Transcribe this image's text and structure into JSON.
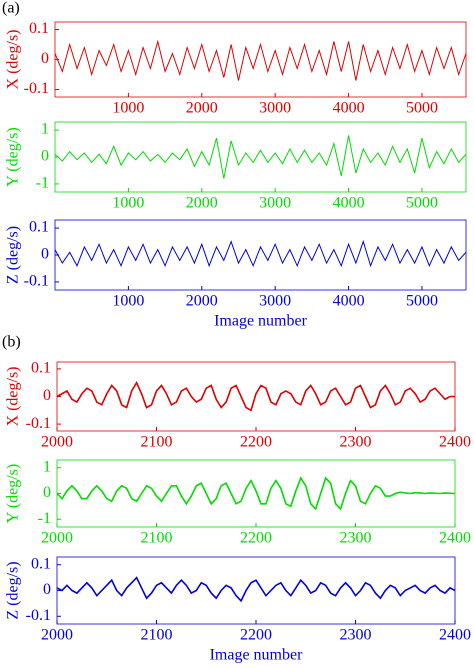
{
  "figure_labels": [
    "(a)",
    "(b)"
  ],
  "chart_data": [
    {
      "type": "line",
      "ylabel": "X (deg/s)",
      "xlim": [
        0,
        5600
      ],
      "ylim": [
        -0.125,
        0.125
      ],
      "xticks": [
        1000,
        2000,
        3000,
        4000,
        5000
      ],
      "yticks": [
        -0.1,
        0,
        0.1
      ],
      "x": [
        0,
        100,
        200,
        300,
        400,
        500,
        600,
        700,
        800,
        900,
        1000,
        1100,
        1200,
        1300,
        1400,
        1500,
        1600,
        1700,
        1800,
        1900,
        2000,
        2100,
        2200,
        2300,
        2400,
        2500,
        2600,
        2700,
        2800,
        2900,
        3000,
        3100,
        3200,
        3300,
        3400,
        3500,
        3600,
        3700,
        3800,
        3900,
        4000,
        4100,
        4200,
        4300,
        4400,
        4500,
        4600,
        4700,
        4800,
        4900,
        5000,
        5100,
        5200,
        5300,
        5400,
        5500,
        5600
      ],
      "series": [
        {
          "color": "#e00000",
          "values": [
            0.02,
            -0.04,
            0.05,
            -0.03,
            0.04,
            -0.05,
            0.03,
            -0.02,
            0.05,
            -0.04,
            0.03,
            -0.05,
            0.04,
            -0.03,
            0.06,
            -0.04,
            0.02,
            -0.05,
            0.04,
            -0.03,
            0.05,
            -0.04,
            0.03,
            -0.06,
            0.05,
            -0.07,
            0.04,
            -0.03,
            0.05,
            -0.04,
            0.03,
            -0.05,
            0.04,
            -0.03,
            0.05,
            -0.04,
            0.03,
            -0.05,
            0.06,
            -0.04,
            0.06,
            -0.07,
            0.05,
            -0.04,
            0.03,
            -0.05,
            0.04,
            -0.03,
            0.05,
            -0.04,
            0.03,
            -0.05,
            0.04,
            -0.03,
            0.04,
            -0.05,
            0.02
          ]
        }
      ]
    },
    {
      "type": "line",
      "ylabel": "Y (deg/s)",
      "xlim": [
        0,
        5600
      ],
      "ylim": [
        -1.3,
        1.3
      ],
      "xticks": [
        1000,
        2000,
        3000,
        4000,
        5000
      ],
      "yticks": [
        -1,
        0,
        1
      ],
      "x": [
        0,
        100,
        200,
        300,
        400,
        500,
        600,
        700,
        800,
        900,
        1000,
        1100,
        1200,
        1300,
        1400,
        1500,
        1600,
        1700,
        1800,
        1900,
        2000,
        2100,
        2200,
        2300,
        2400,
        2500,
        2600,
        2700,
        2800,
        2900,
        3000,
        3100,
        3200,
        3300,
        3400,
        3500,
        3600,
        3700,
        3800,
        3900,
        4000,
        4100,
        4200,
        4300,
        4400,
        4500,
        4600,
        4700,
        4800,
        4900,
        5000,
        5100,
        5200,
        5300,
        5400,
        5500,
        5600
      ],
      "series": [
        {
          "color": "#00dd00",
          "values": [
            0.1,
            -0.15,
            0.2,
            -0.1,
            0.15,
            -0.2,
            0.1,
            -0.25,
            0.4,
            -0.3,
            0.15,
            -0.1,
            0.2,
            -0.15,
            0.1,
            -0.2,
            0.15,
            -0.1,
            0.3,
            -0.35,
            0.2,
            -0.3,
            0.7,
            -0.8,
            0.6,
            -0.3,
            0.15,
            -0.2,
            0.25,
            -0.2,
            0.15,
            -0.25,
            0.3,
            -0.2,
            0.25,
            -0.2,
            0.15,
            -0.3,
            0.5,
            -0.7,
            0.8,
            -0.6,
            0.3,
            -0.2,
            0.15,
            -0.3,
            0.4,
            -0.2,
            0.3,
            -0.6,
            0.7,
            -0.4,
            0.2,
            -0.25,
            0.3,
            -0.2,
            0.1
          ]
        }
      ]
    },
    {
      "type": "line",
      "ylabel": "Z (deg/s)",
      "xlabel": "Image number",
      "xlim": [
        0,
        5600
      ],
      "ylim": [
        -0.13,
        0.13
      ],
      "xticks": [
        1000,
        2000,
        3000,
        4000,
        5000
      ],
      "yticks": [
        -0.1,
        0,
        0.1
      ],
      "x": [
        0,
        100,
        200,
        300,
        400,
        500,
        600,
        700,
        800,
        900,
        1000,
        1100,
        1200,
        1300,
        1400,
        1500,
        1600,
        1700,
        1800,
        1900,
        2000,
        2100,
        2200,
        2300,
        2400,
        2500,
        2600,
        2700,
        2800,
        2900,
        3000,
        3100,
        3200,
        3300,
        3400,
        3500,
        3600,
        3700,
        3800,
        3900,
        4000,
        4100,
        4200,
        4300,
        4400,
        4500,
        4600,
        4700,
        4800,
        4900,
        5000,
        5100,
        5200,
        5300,
        5400,
        5500,
        5600
      ],
      "series": [
        {
          "color": "#0000e0",
          "values": [
            0.02,
            -0.03,
            0.01,
            -0.04,
            0.03,
            -0.02,
            0.04,
            -0.03,
            0.02,
            -0.04,
            0.03,
            -0.02,
            0.04,
            -0.03,
            0.02,
            -0.04,
            0.03,
            -0.02,
            0.03,
            -0.03,
            0.04,
            -0.04,
            0.03,
            -0.02,
            0.05,
            -0.03,
            0.02,
            -0.04,
            0.03,
            -0.02,
            0.04,
            -0.03,
            0.02,
            -0.04,
            0.03,
            -0.02,
            0.04,
            -0.03,
            0.02,
            -0.04,
            0.04,
            -0.03,
            0.05,
            -0.04,
            0.03,
            -0.02,
            0.04,
            -0.03,
            0.02,
            -0.03,
            0.03,
            -0.04,
            0.02,
            -0.03,
            0.03,
            -0.02,
            0.01
          ]
        }
      ]
    },
    {
      "type": "line",
      "ylabel": "X (deg/s)",
      "xlim": [
        2000,
        2400
      ],
      "ylim": [
        -0.125,
        0.125
      ],
      "xticks": [
        2000,
        2100,
        2200,
        2300,
        2400
      ],
      "yticks": [
        -0.1,
        0,
        0.1
      ],
      "x": [
        2000,
        2005,
        2010,
        2015,
        2020,
        2025,
        2030,
        2035,
        2040,
        2045,
        2050,
        2055,
        2060,
        2065,
        2070,
        2075,
        2080,
        2085,
        2090,
        2095,
        2100,
        2105,
        2110,
        2115,
        2120,
        2125,
        2130,
        2135,
        2140,
        2145,
        2150,
        2155,
        2160,
        2165,
        2170,
        2175,
        2180,
        2185,
        2190,
        2195,
        2200,
        2205,
        2210,
        2215,
        2220,
        2225,
        2230,
        2235,
        2240,
        2245,
        2250,
        2255,
        2260,
        2265,
        2270,
        2275,
        2280,
        2285,
        2290,
        2295,
        2300,
        2305,
        2310,
        2315,
        2320,
        2325,
        2330,
        2335,
        2340,
        2345,
        2350,
        2355,
        2360,
        2365,
        2370,
        2375,
        2380,
        2385,
        2390,
        2395,
        2400
      ],
      "series": [
        {
          "color": "#e00000",
          "values": [
            0,
            0.01,
            0.02,
            -0.01,
            -0.02,
            0.01,
            0.03,
            0.02,
            -0.02,
            -0.03,
            0.01,
            0.04,
            0.02,
            -0.03,
            -0.04,
            0.02,
            0.05,
            0.01,
            -0.04,
            -0.03,
            0.02,
            0.04,
            0.01,
            -0.03,
            -0.02,
            0.02,
            0.03,
            0,
            -0.02,
            -0.01,
            0.03,
            0.04,
            -0.01,
            -0.04,
            -0.02,
            0.03,
            0.04,
            0,
            -0.04,
            -0.05,
            0.01,
            0.04,
            0.03,
            -0.02,
            -0.03,
            0.01,
            0.02,
            0.01,
            -0.02,
            -0.03,
            0.02,
            0.04,
            0.01,
            -0.03,
            -0.02,
            0.02,
            0.03,
            0,
            -0.03,
            -0.02,
            0.03,
            0.04,
            0,
            -0.04,
            -0.03,
            0.02,
            0.04,
            0.01,
            -0.03,
            -0.02,
            0.02,
            0.03,
            0.01,
            -0.02,
            -0.01,
            0.02,
            0.03,
            0.01,
            -0.01,
            0,
            0
          ]
        }
      ]
    },
    {
      "type": "line",
      "ylabel": "Y (deg/s)",
      "xlim": [
        2000,
        2400
      ],
      "ylim": [
        -1.3,
        1.3
      ],
      "xticks": [
        2000,
        2100,
        2200,
        2300,
        2400
      ],
      "yticks": [
        -1,
        0,
        1
      ],
      "x": [
        2000,
        2005,
        2010,
        2015,
        2020,
        2025,
        2030,
        2035,
        2040,
        2045,
        2050,
        2055,
        2060,
        2065,
        2070,
        2075,
        2080,
        2085,
        2090,
        2095,
        2100,
        2105,
        2110,
        2115,
        2120,
        2125,
        2130,
        2135,
        2140,
        2145,
        2150,
        2155,
        2160,
        2165,
        2170,
        2175,
        2180,
        2185,
        2190,
        2195,
        2200,
        2205,
        2210,
        2215,
        2220,
        2225,
        2230,
        2235,
        2240,
        2245,
        2250,
        2255,
        2260,
        2265,
        2270,
        2275,
        2280,
        2285,
        2290,
        2295,
        2300,
        2305,
        2310,
        2315,
        2320,
        2325,
        2330,
        2335,
        2340,
        2345,
        2350,
        2355,
        2360,
        2365,
        2370,
        2375,
        2380,
        2385,
        2390,
        2395,
        2400
      ],
      "series": [
        {
          "color": "#00dd00",
          "values": [
            0,
            -0.2,
            0.1,
            0.3,
            0.1,
            -0.2,
            -0.2,
            0.1,
            0.3,
            0.1,
            -0.2,
            -0.3,
            0.1,
            0.3,
            0.2,
            -0.2,
            -0.3,
            0,
            0.3,
            0.2,
            -0.1,
            -0.3,
            0,
            0.3,
            0.3,
            -0.1,
            -0.4,
            -0.1,
            0.3,
            0.4,
            0,
            -0.4,
            -0.2,
            0.3,
            0.4,
            0,
            -0.4,
            -0.3,
            0.2,
            0.5,
            0.1,
            -0.4,
            -0.4,
            0.2,
            0.5,
            0.2,
            -0.4,
            -0.5,
            0.1,
            0.6,
            0.3,
            -0.4,
            -0.6,
            0,
            0.6,
            0.4,
            -0.4,
            -0.6,
            0,
            0.5,
            0.3,
            -0.3,
            -0.4,
            0,
            0.3,
            0.2,
            -0.1,
            -0.1,
            0,
            0.05,
            0.02,
            0,
            0.03,
            0.02,
            0,
            0.02,
            0.01,
            0,
            0.02,
            0.01,
            0
          ]
        }
      ]
    },
    {
      "type": "line",
      "ylabel": "Z (deg/s)",
      "xlabel": "Image number",
      "xlim": [
        2000,
        2400
      ],
      "ylim": [
        -0.13,
        0.13
      ],
      "xticks": [
        2000,
        2100,
        2200,
        2300,
        2400
      ],
      "yticks": [
        -0.1,
        0,
        0.1
      ],
      "x": [
        2000,
        2005,
        2010,
        2015,
        2020,
        2025,
        2030,
        2035,
        2040,
        2045,
        2050,
        2055,
        2060,
        2065,
        2070,
        2075,
        2080,
        2085,
        2090,
        2095,
        2100,
        2105,
        2110,
        2115,
        2120,
        2125,
        2130,
        2135,
        2140,
        2145,
        2150,
        2155,
        2160,
        2165,
        2170,
        2175,
        2180,
        2185,
        2190,
        2195,
        2200,
        2205,
        2210,
        2215,
        2220,
        2225,
        2230,
        2235,
        2240,
        2245,
        2250,
        2255,
        2260,
        2265,
        2270,
        2275,
        2280,
        2285,
        2290,
        2295,
        2300,
        2305,
        2310,
        2315,
        2320,
        2325,
        2330,
        2335,
        2340,
        2345,
        2350,
        2355,
        2360,
        2365,
        2370,
        2375,
        2380,
        2385,
        2390,
        2395,
        2400
      ],
      "series": [
        {
          "color": "#0000e0",
          "values": [
            0.01,
            0,
            0.02,
            0,
            -0.01,
            0.01,
            0.03,
            0.01,
            -0.02,
            0,
            0.02,
            0.04,
            0,
            -0.02,
            0.01,
            0.03,
            0.05,
            0.01,
            -0.03,
            -0.01,
            0.02,
            0.03,
            0.01,
            -0.01,
            0.02,
            0.04,
            0.02,
            -0.01,
            0,
            0.03,
            0.02,
            -0.01,
            -0.03,
            0,
            0.02,
            0.01,
            -0.02,
            -0.04,
            0,
            0.03,
            0.04,
            0.01,
            -0.02,
            0,
            0.02,
            0.03,
            0,
            -0.02,
            0.01,
            0.04,
            0.02,
            -0.01,
            0,
            0.03,
            0.02,
            -0.01,
            -0.02,
            0.01,
            0.03,
            0.01,
            -0.02,
            0,
            0.03,
            0.02,
            -0.01,
            -0.03,
            0,
            0.02,
            0.01,
            -0.02,
            0,
            0.01,
            0.02,
            0,
            -0.01,
            0.01,
            0.02,
            0,
            -0.01,
            0.01,
            0
          ]
        }
      ]
    }
  ]
}
